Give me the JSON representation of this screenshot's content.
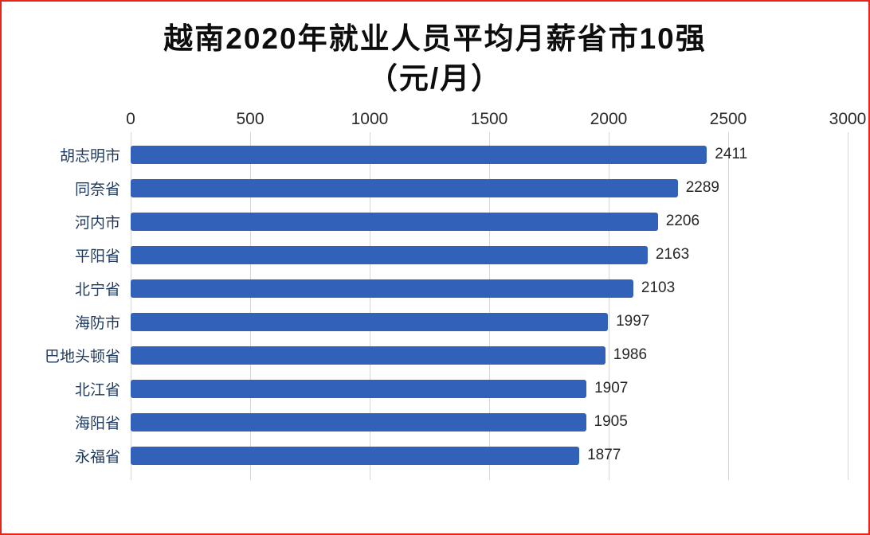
{
  "frame": {
    "border_color": "#e8231a"
  },
  "title": {
    "line1": "越南2020年就业人员平均月薪省市10强",
    "line2": "（元/月）"
  },
  "chart_data": {
    "type": "bar",
    "orientation": "horizontal",
    "title": "越南2020年就业人员平均月薪省市10强（元/月）",
    "categories": [
      "胡志明市",
      "同奈省",
      "河内市",
      "平阳省",
      "北宁省",
      "海防市",
      "巴地头顿省",
      "北江省",
      "海阳省",
      "永福省"
    ],
    "values": [
      2411,
      2289,
      2206,
      2163,
      2103,
      1997,
      1986,
      1907,
      1905,
      1877
    ],
    "xlim": [
      0,
      3000
    ],
    "x_ticks": [
      0,
      500,
      1000,
      1500,
      2000,
      2500,
      3000
    ],
    "xlabel": "",
    "ylabel": "",
    "grid": true,
    "legend": false,
    "value_labels": true,
    "bar_color": "#3161b8",
    "grid_color": "#d6d6d6"
  }
}
